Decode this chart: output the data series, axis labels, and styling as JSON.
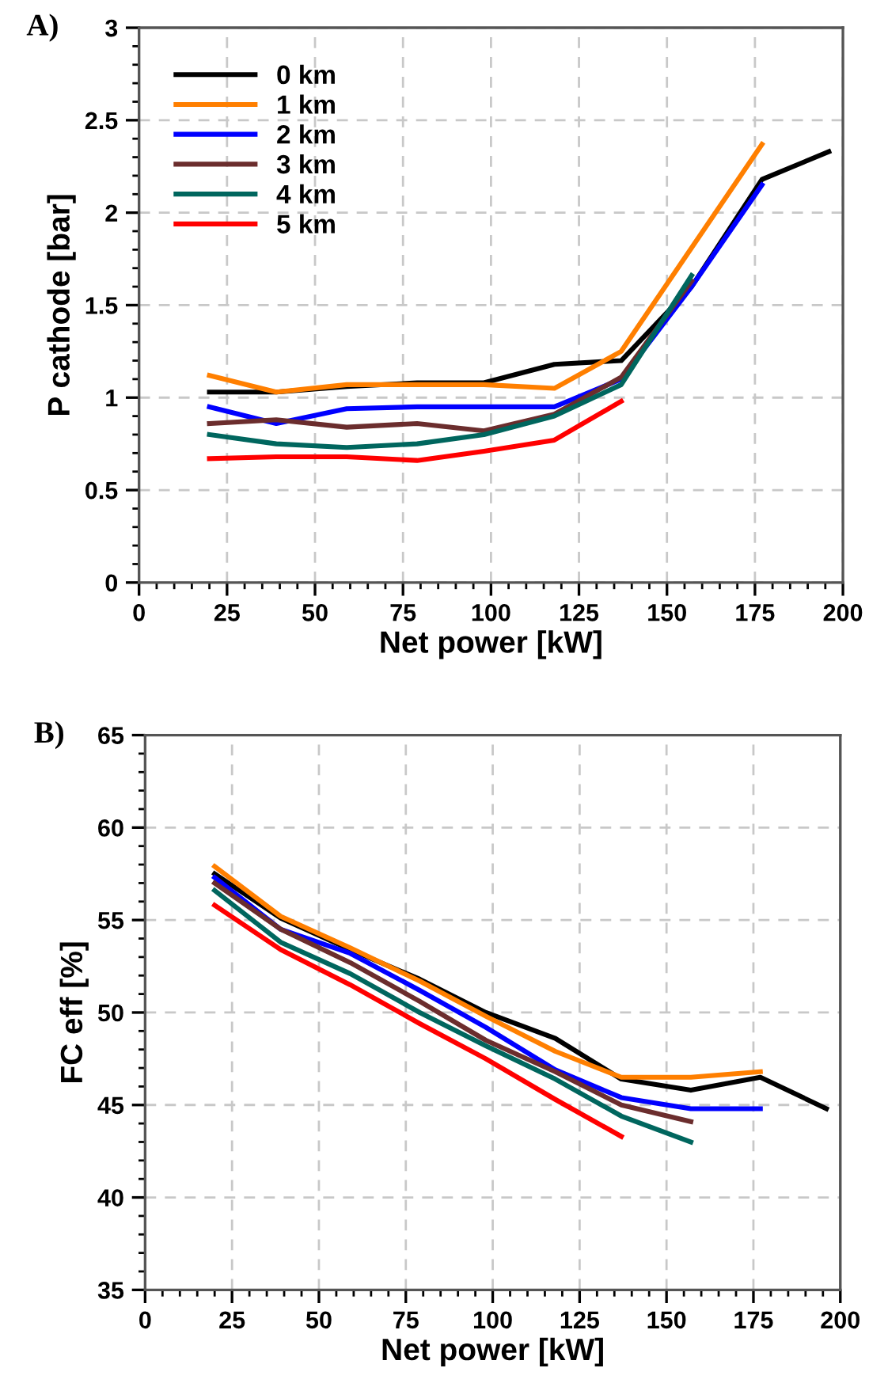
{
  "chart_data": [
    {
      "type": "line",
      "annotations": [
        "A)"
      ],
      "xlabel": "Net power [kW]",
      "ylabel": "P cathode [bar]",
      "xlim": [
        0,
        200
      ],
      "ylim": [
        0,
        3
      ],
      "xticks": [
        0,
        25,
        50,
        75,
        100,
        125,
        150,
        175,
        200
      ],
      "yticks": [
        0,
        0.5,
        1,
        1.5,
        2,
        2.5,
        3
      ],
      "grid": true,
      "legend": "top left",
      "line_style": "solid",
      "marker": "none",
      "series": [
        {
          "name": "0 km",
          "color": "#000000",
          "x": [
            20,
            39,
            59,
            79,
            98,
            118,
            137,
            157,
            177,
            196
          ],
          "values": [
            1.03,
            1.03,
            1.06,
            1.08,
            1.08,
            1.18,
            1.2,
            1.6,
            2.18,
            2.33
          ]
        },
        {
          "name": "1 km",
          "color": "#ff7f00",
          "x": [
            20,
            39,
            59,
            79,
            98,
            118,
            137,
            157,
            177
          ],
          "values": [
            1.12,
            1.03,
            1.07,
            1.07,
            1.07,
            1.05,
            1.25,
            1.81,
            2.37
          ]
        },
        {
          "name": "2 km",
          "color": "#0000ff",
          "x": [
            20,
            39,
            59,
            79,
            98,
            118,
            137,
            157,
            177
          ],
          "values": [
            0.95,
            0.86,
            0.94,
            0.95,
            0.95,
            0.95,
            1.1,
            1.6,
            2.15
          ]
        },
        {
          "name": "3 km",
          "color": "#6b2d2d",
          "x": [
            20,
            39,
            59,
            79,
            98,
            118,
            137,
            157
          ],
          "values": [
            0.86,
            0.88,
            0.84,
            0.86,
            0.82,
            0.91,
            1.11,
            1.63
          ]
        },
        {
          "name": "4 km",
          "color": "#00665e",
          "x": [
            20,
            39,
            59,
            79,
            98,
            118,
            137,
            157
          ],
          "values": [
            0.8,
            0.75,
            0.73,
            0.75,
            0.8,
            0.9,
            1.07,
            1.66
          ]
        },
        {
          "name": "5 km",
          "color": "#ff0000",
          "x": [
            20,
            39,
            59,
            79,
            98,
            118,
            137
          ],
          "values": [
            0.67,
            0.68,
            0.68,
            0.66,
            0.71,
            0.77,
            0.98
          ]
        }
      ]
    },
    {
      "type": "line",
      "annotations": [
        "B)"
      ],
      "xlabel": "Net power [kW]",
      "ylabel": "FC eff [%]",
      "xlim": [
        0,
        200
      ],
      "ylim": [
        35,
        65
      ],
      "xticks": [
        0,
        25,
        50,
        75,
        100,
        125,
        150,
        175,
        200
      ],
      "yticks": [
        35,
        40,
        45,
        50,
        55,
        60,
        65
      ],
      "grid": true,
      "line_style": "solid",
      "marker": "none",
      "series": [
        {
          "color": "#000000",
          "x": [
            20,
            39,
            59,
            79,
            98,
            118,
            137,
            157,
            177,
            196
          ],
          "values": [
            57.5,
            55.1,
            53.4,
            51.8,
            50.0,
            48.6,
            46.4,
            45.8,
            46.5,
            44.8
          ]
        },
        {
          "color": "#ff7f00",
          "x": [
            20,
            39,
            59,
            79,
            98,
            118,
            137,
            157,
            177
          ],
          "values": [
            57.9,
            55.2,
            53.5,
            51.7,
            49.8,
            47.9,
            46.5,
            46.5,
            46.8
          ]
        },
        {
          "color": "#0000ff",
          "x": [
            20,
            39,
            59,
            79,
            98,
            118,
            137,
            157,
            177
          ],
          "values": [
            57.3,
            54.5,
            53.2,
            51.2,
            49.2,
            46.9,
            45.4,
            44.8,
            44.8
          ]
        },
        {
          "color": "#6b2d2d",
          "x": [
            20,
            39,
            59,
            79,
            98,
            118,
            137,
            157
          ],
          "values": [
            57.0,
            54.5,
            52.7,
            50.6,
            48.5,
            46.8,
            45.0,
            44.1
          ]
        },
        {
          "color": "#00665e",
          "x": [
            20,
            39,
            59,
            79,
            98,
            118,
            137,
            157
          ],
          "values": [
            56.6,
            53.8,
            52.1,
            50.0,
            48.2,
            46.4,
            44.4,
            43.0
          ]
        },
        {
          "color": "#ff0000",
          "x": [
            20,
            39,
            59,
            79,
            98,
            118,
            137
          ],
          "values": [
            55.8,
            53.4,
            51.5,
            49.4,
            47.5,
            45.3,
            43.3
          ]
        }
      ]
    }
  ]
}
